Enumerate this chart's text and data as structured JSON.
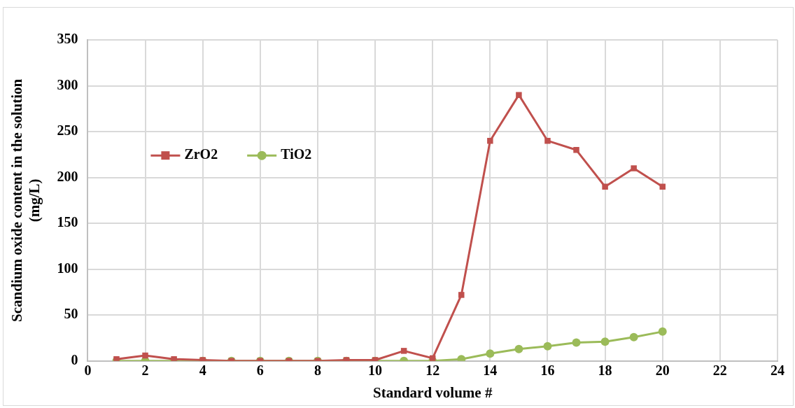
{
  "chart_data": {
    "type": "line",
    "xlabel": "Standard volume #",
    "ylabel": "Scandium oxide content in the solution (mg/L)",
    "x": [
      1,
      2,
      3,
      4,
      5,
      6,
      7,
      8,
      9,
      10,
      11,
      12,
      13,
      14,
      15,
      16,
      17,
      18,
      19,
      20
    ],
    "series": [
      {
        "name": "ZrO2",
        "color": "#c0504d",
        "marker": "square",
        "values": [
          2,
          6,
          2,
          1,
          0,
          0,
          0,
          0,
          1,
          1,
          11,
          3,
          72,
          240,
          290,
          240,
          230,
          190,
          210,
          190
        ]
      },
      {
        "name": "TiO2",
        "color": "#9bbb59",
        "marker": "circle",
        "values": [
          0,
          0,
          0,
          0,
          0,
          0,
          0,
          0,
          0,
          0,
          0,
          0,
          2,
          8,
          13,
          16,
          20,
          21,
          26,
          32
        ]
      }
    ],
    "xlim": [
      0,
      24
    ],
    "xticks": [
      0,
      2,
      4,
      6,
      8,
      10,
      12,
      14,
      16,
      18,
      20,
      22,
      24
    ],
    "ylim": [
      0,
      350
    ],
    "yticks": [
      0,
      50,
      100,
      150,
      200,
      250,
      300,
      350
    ],
    "grid": true,
    "legend": "left",
    "line_style": "solid"
  }
}
